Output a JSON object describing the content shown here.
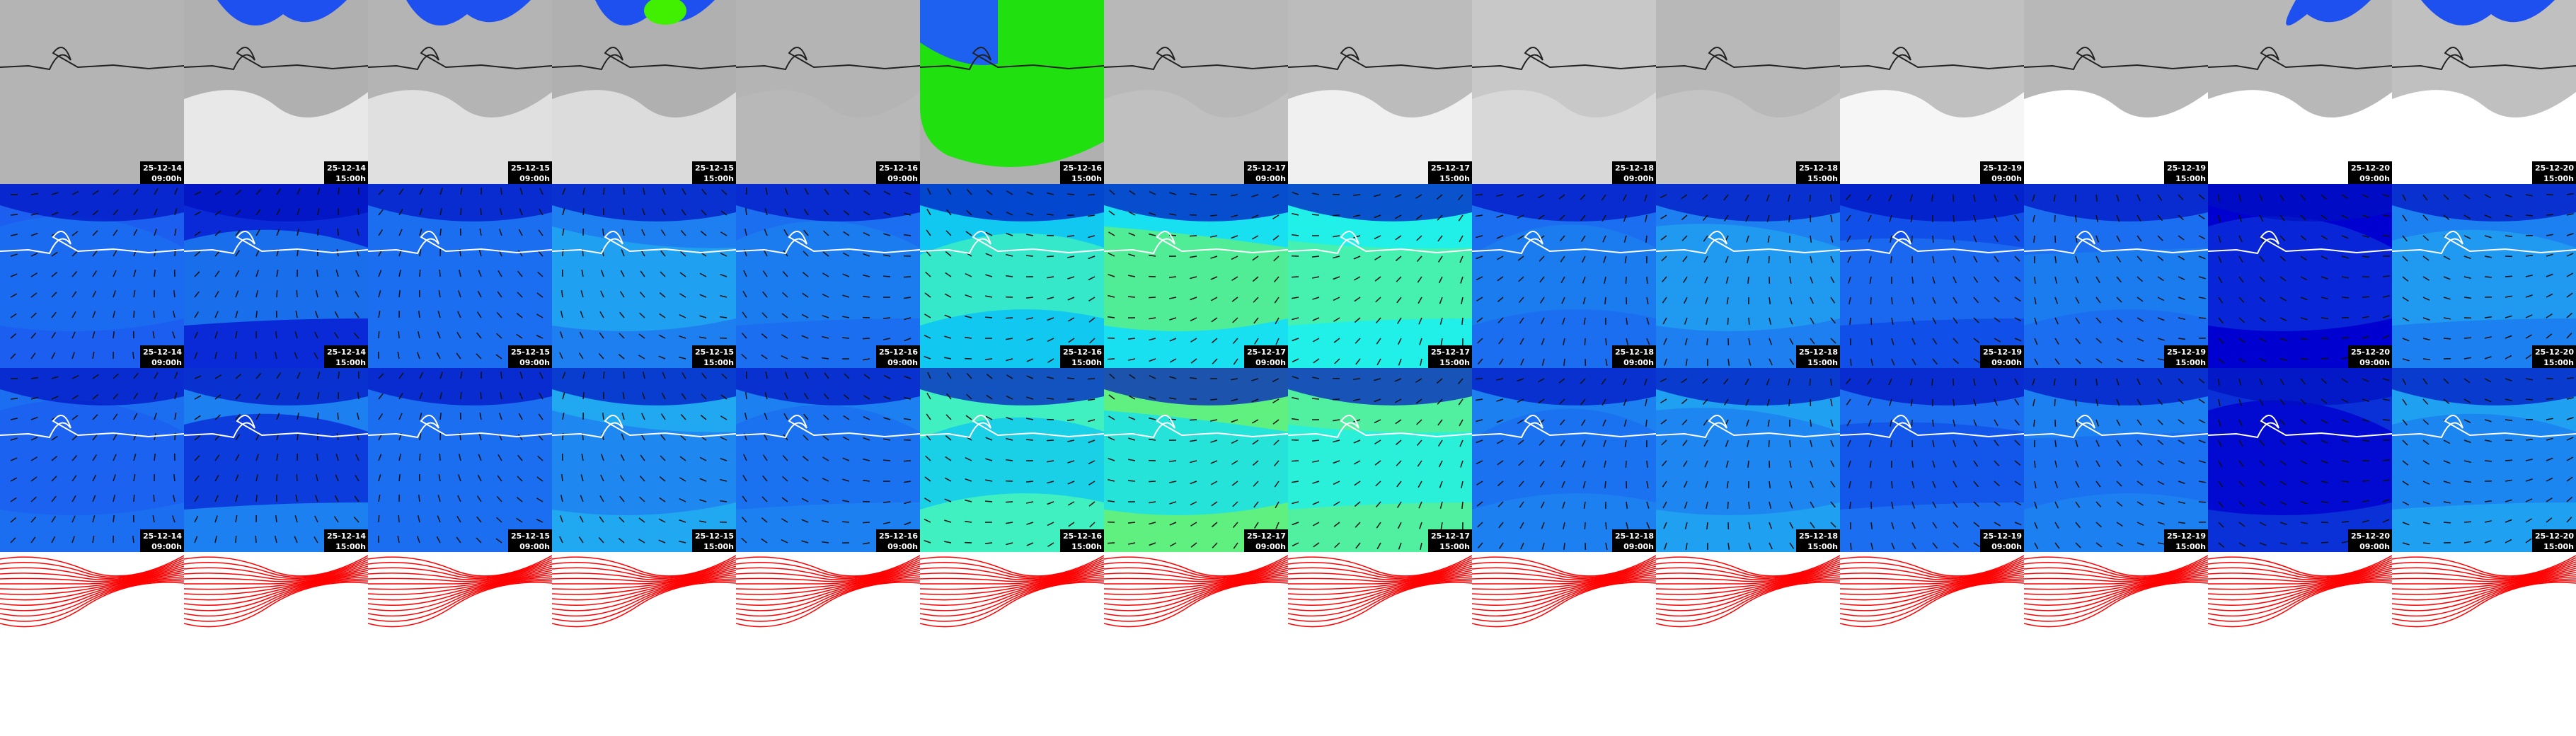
{
  "panels": [
    {
      "date": "25-12-14",
      "time": "09:00h"
    },
    {
      "date": "25-12-14",
      "time": "15:00h"
    },
    {
      "date": "25-12-15",
      "time": "09:00h"
    },
    {
      "date": "25-12-15",
      "time": "15:00h"
    },
    {
      "date": "25-12-16",
      "time": "09:00h"
    },
    {
      "date": "25-12-16",
      "time": "15:00h"
    },
    {
      "date": "25-12-17",
      "time": "09:00h"
    },
    {
      "date": "25-12-17",
      "time": "15:00h"
    },
    {
      "date": "25-12-18",
      "time": "09:00h"
    },
    {
      "date": "25-12-18",
      "time": "15:00h"
    },
    {
      "date": "25-12-19",
      "time": "09:00h"
    },
    {
      "date": "25-12-19",
      "time": "15:00h"
    },
    {
      "date": "25-12-20",
      "time": "09:00h"
    },
    {
      "date": "25-12-20",
      "time": "15:00h"
    }
  ]
}
